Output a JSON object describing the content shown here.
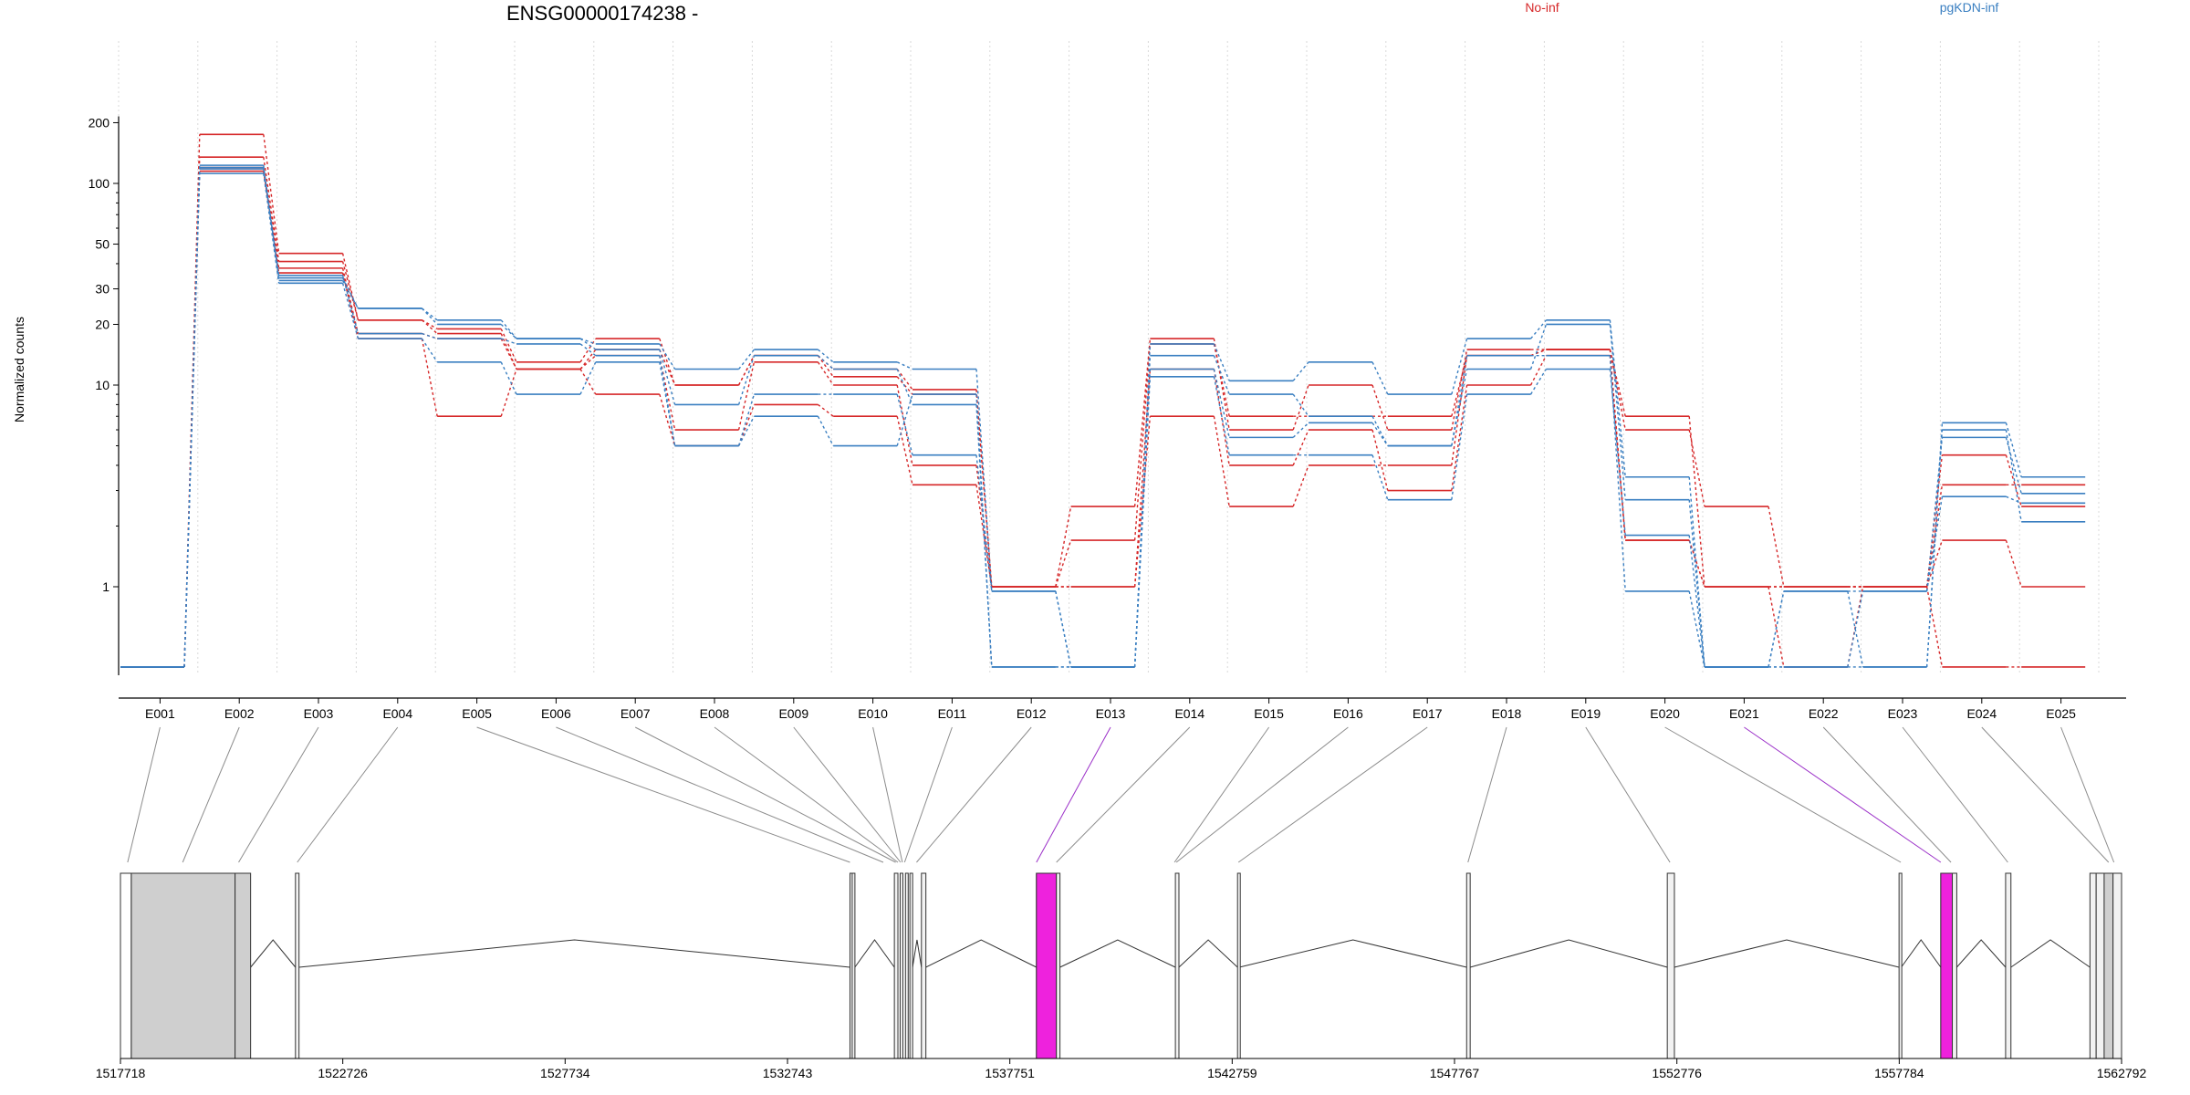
{
  "chart_data": {
    "type": "line",
    "title": "ENSG00000174238 -",
    "ylabel": "Normalized counts",
    "xlabel": "",
    "y_scale": "log",
    "ylim": [
      0.4,
      215
    ],
    "y_ticks": [
      1,
      10,
      20,
      30,
      50,
      100,
      200
    ],
    "grid": "vertical dotted lines at exon boundaries",
    "legend_position": "top",
    "legend": [
      {
        "label": "No-inf",
        "color": "#d62728"
      },
      {
        "label": "pgKDN-inf",
        "color": "#3a7fc1"
      }
    ],
    "categories": [
      "E001",
      "E002",
      "E003",
      "E004",
      "E005",
      "E006",
      "E007",
      "E008",
      "E009",
      "E010",
      "E011",
      "E012",
      "E013",
      "E014",
      "E015",
      "E016",
      "E017",
      "E018",
      "E019",
      "E020",
      "E021",
      "E022",
      "E023",
      "E024",
      "E025"
    ],
    "series": [
      {
        "group": "No-inf",
        "color": "#d62728",
        "values": [
          0.4,
          175,
          45,
          21,
          19,
          13,
          17,
          10,
          14,
          12,
          9.5,
          1.0,
          2.5,
          17,
          6,
          10,
          6,
          15,
          15,
          6,
          2.5,
          1.0,
          1.0,
          4.5,
          2.5
        ]
      },
      {
        "group": "No-inf",
        "color": "#d62728",
        "values": [
          0.4,
          135,
          41,
          21,
          18,
          12,
          15,
          10,
          14,
          11,
          9,
          1.0,
          1.7,
          16,
          7,
          7,
          7,
          14,
          15,
          7,
          1.0,
          1.0,
          1.0,
          3.2,
          3.2
        ]
      },
      {
        "group": "No-inf",
        "color": "#d62728",
        "values": [
          0.4,
          120,
          38,
          18,
          17,
          12,
          14,
          6,
          13,
          10,
          4,
          1.0,
          1.0,
          12,
          4,
          6,
          3,
          10,
          14,
          1.7,
          1.0,
          0.4,
          1.0,
          1.7,
          1.0
        ]
      },
      {
        "group": "No-inf",
        "color": "#d62728",
        "values": [
          0.4,
          115,
          36,
          17,
          7,
          12,
          9,
          5,
          8,
          7,
          3.2,
          1.0,
          1.0,
          7,
          2.5,
          4,
          4,
          14,
          15,
          1.7,
          1.0,
          1.0,
          1.0,
          0.4,
          0.4
        ]
      },
      {
        "group": "pgKDN-inf",
        "color": "#3a7fc1",
        "values": [
          0.4,
          123,
          34,
          24,
          21,
          17,
          16,
          12,
          15,
          13,
          12,
          0.95,
          0.4,
          16,
          10.5,
          13,
          9,
          17,
          21,
          3.5,
          0.4,
          0.4,
          0.4,
          6.5,
          3.5
        ]
      },
      {
        "group": "pgKDN-inf",
        "color": "#3a7fc1",
        "values": [
          0.4,
          120,
          33,
          24,
          20,
          17,
          15,
          8,
          14,
          12,
          8,
          0.4,
          0.4,
          14,
          9,
          7,
          5,
          12,
          20,
          2.7,
          0.4,
          0.95,
          0.4,
          6,
          2.1
        ]
      },
      {
        "group": "pgKDN-inf",
        "color": "#3a7fc1",
        "values": [
          0.4,
          112,
          32,
          17,
          13,
          9,
          13,
          5,
          9,
          9,
          4.5,
          0.95,
          0.4,
          11,
          4.5,
          4.5,
          2.7,
          9,
          12,
          1.8,
          0.4,
          0.4,
          0.95,
          2.8,
          2.6
        ]
      },
      {
        "group": "pgKDN-inf",
        "color": "#3a7fc1",
        "values": [
          0.4,
          118,
          35,
          18,
          17,
          16,
          14,
          5,
          7,
          5,
          9,
          0.4,
          0.4,
          12,
          5.5,
          6.5,
          5,
          14,
          14,
          0.95,
          0.4,
          0.95,
          0.95,
          5.5,
          2.9
        ]
      }
    ],
    "gene_model": {
      "coordinate_ticks": [
        "1517718",
        "1522726",
        "1527734",
        "1532743",
        "1537751",
        "1542759",
        "1547767",
        "1552776",
        "1557784",
        "1562792"
      ],
      "exons": [
        {
          "id": "E001",
          "start": 1517718,
          "end": 1517960
        },
        {
          "id": "E002",
          "start": 1517960,
          "end": 1520300
        },
        {
          "id": "E003",
          "start": 1520300,
          "end": 1520650
        },
        {
          "id": "E004",
          "start": 1521660,
          "end": 1521740
        },
        {
          "id": "E005",
          "start": 1534150,
          "end": 1534200
        },
        {
          "id": "E006",
          "start": 1534200,
          "end": 1534260
        },
        {
          "id": "E007",
          "start": 1535150,
          "end": 1535230
        },
        {
          "id": "E008",
          "start": 1535280,
          "end": 1535340
        },
        {
          "id": "E009",
          "start": 1535400,
          "end": 1535460
        },
        {
          "id": "E010",
          "start": 1535500,
          "end": 1535560
        },
        {
          "id": "E011",
          "start": 1535760,
          "end": 1535860
        },
        {
          "id": "E012",
          "start": 1538350,
          "end": 1538800,
          "highlight": true
        },
        {
          "id": "E013",
          "start": 1538800,
          "end": 1538880
        },
        {
          "id": "E014",
          "start": 1541480,
          "end": 1541560
        },
        {
          "id": "E015",
          "start": 1542880,
          "end": 1542920
        },
        {
          "id": "E016",
          "start": 1548040,
          "end": 1548120
        },
        {
          "id": "E017",
          "start": 1552560,
          "end": 1552720
        },
        {
          "id": "E018",
          "start": 1557780,
          "end": 1557830
        },
        {
          "id": "E019",
          "start": 1558720,
          "end": 1558980,
          "highlight": true
        },
        {
          "id": "E020",
          "start": 1558980,
          "end": 1559080
        },
        {
          "id": "E021",
          "start": 1560180,
          "end": 1560300
        },
        {
          "id": "E022",
          "start": 1562080,
          "end": 1562220
        },
        {
          "id": "E023",
          "start": 1562220,
          "end": 1562400
        },
        {
          "id": "E024",
          "start": 1562400,
          "end": 1562600
        },
        {
          "id": "E025",
          "start": 1562600,
          "end": 1562792
        }
      ],
      "connectors": [
        {
          "cat": "E001",
          "gx": 1517880
        },
        {
          "cat": "E002",
          "gx": 1519120
        },
        {
          "cat": "E003",
          "gx": 1520380
        },
        {
          "cat": "E004",
          "gx": 1521700
        },
        {
          "cat": "E005",
          "gx": 1534150
        },
        {
          "cat": "E006",
          "gx": 1534900
        },
        {
          "cat": "E007",
          "gx": 1535180
        },
        {
          "cat": "E008",
          "gx": 1535230
        },
        {
          "cat": "E009",
          "gx": 1535290
        },
        {
          "cat": "E010",
          "gx": 1535330
        },
        {
          "cat": "E011",
          "gx": 1535380
        },
        {
          "cat": "E012",
          "gx": 1535650
        },
        {
          "cat": "E013",
          "gx": 1538350,
          "highlight": true
        },
        {
          "cat": "E014",
          "gx": 1538800
        },
        {
          "cat": "E015",
          "gx": 1541460
        },
        {
          "cat": "E016",
          "gx": 1541500
        },
        {
          "cat": "E017",
          "gx": 1542900
        },
        {
          "cat": "E018",
          "gx": 1548070
        },
        {
          "cat": "E019",
          "gx": 1552620
        },
        {
          "cat": "E020",
          "gx": 1557820
        },
        {
          "cat": "E021",
          "gx": 1558720,
          "highlight": true
        },
        {
          "cat": "E022",
          "gx": 1558950
        },
        {
          "cat": "E023",
          "gx": 1560230
        },
        {
          "cat": "E024",
          "gx": 1562500
        },
        {
          "cat": "E025",
          "gx": 1562620
        }
      ]
    }
  }
}
